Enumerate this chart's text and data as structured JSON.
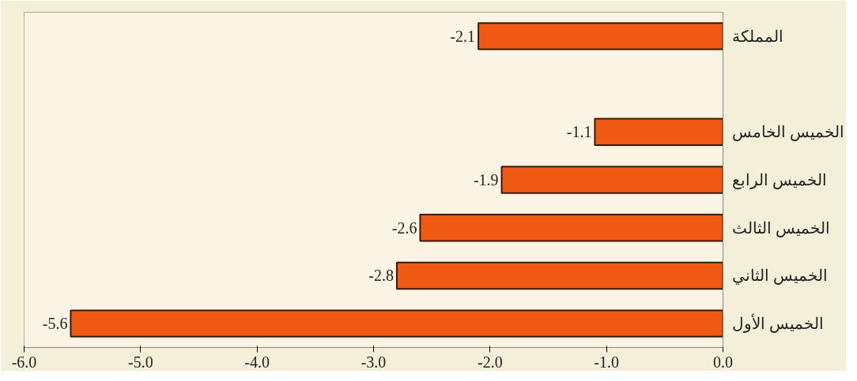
{
  "chart_data": {
    "type": "bar",
    "orientation": "horizontal",
    "categories": [
      "المملكة",
      null,
      "الخميس الخامس",
      "الخميس الرابع",
      "الخميس الثالث",
      "الخميس الثاني",
      "الخميس الأول"
    ],
    "values": [
      -2.1,
      null,
      -1.1,
      -1.9,
      -2.6,
      -2.8,
      -5.6
    ],
    "color": "#f05a14",
    "xlim": [
      -6,
      0
    ],
    "xticks": [
      {
        "value": -6,
        "label": "-6.0"
      },
      {
        "value": -5,
        "label": "-5.0"
      },
      {
        "value": -4,
        "label": "-4.0"
      },
      {
        "value": -3,
        "label": "-3.0"
      },
      {
        "value": -2,
        "label": "-2.0"
      },
      {
        "value": -1,
        "label": "-1.0"
      },
      {
        "value": 0,
        "label": "0.0"
      }
    ],
    "data_labels": true,
    "grid": false
  }
}
